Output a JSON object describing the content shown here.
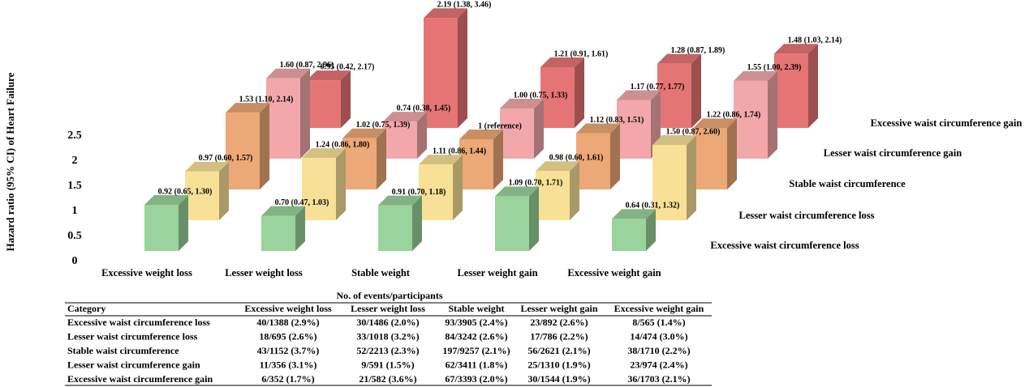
{
  "chart_data": {
    "type": "bar",
    "ylabel": "Hazard ratio (95% CI) of Heart Failure",
    "categories": [
      "Excessive weight loss",
      "Lesser weight loss",
      "Stable weight",
      "Lesser weight gain",
      "Excessive weight gain"
    ],
    "series": [
      {
        "name": "Excessive waist circumference loss",
        "color": "#9ad39b",
        "values": [
          0.92,
          0.7,
          0.91,
          1.09,
          0.64
        ],
        "value_labels": [
          "0.92 (0.65, 1.30)",
          "0.70 (0.47, 1.03)",
          "0.91 (0.70, 1.18)",
          "1.09 (0.70, 1.71)",
          "0.64 (0.31, 1.32)"
        ]
      },
      {
        "name": "Lesser waist circumference loss",
        "color": "#f8e196",
        "values": [
          0.97,
          1.24,
          1.11,
          0.98,
          1.5
        ],
        "value_labels": [
          "0.97 (0.60, 1.57)",
          "1.24 (0.86, 1.80)",
          "1.11 (0.86, 1.44)",
          "0.98 (0.60, 1.61)",
          "1.50 (0.87, 2.60)"
        ]
      },
      {
        "name": "Stable waist circumference",
        "color": "#eca876",
        "values": [
          1.53,
          1.02,
          1,
          1.12,
          1.22
        ],
        "value_labels": [
          "1.53 (1.10, 2.14)",
          "1.02 (0.75, 1.39)",
          "1 (reference)",
          "1.12 (0.83, 1.51)",
          "1.22 (0.86, 1.74)"
        ]
      },
      {
        "name": "Lesser waist circumference gain",
        "color": "#f2a8ab",
        "values": [
          1.6,
          0.74,
          1.0,
          1.17,
          1.55
        ],
        "value_labels": [
          "1.60 (0.87, 2.96)",
          "0.74 (0.38, 1.45)",
          "1.00 (0.75, 1.33)",
          "1.17 (0.77, 1.77)",
          "1.55 (1.00, 2.39)"
        ]
      },
      {
        "name": "Excessive waist circumference gain",
        "color": "#e57474",
        "values": [
          0.95,
          2.19,
          1.21,
          1.28,
          1.48
        ],
        "value_labels": [
          "0.95 (0.42, 2.17)",
          "2.19 (1.38, 3.46)",
          "1.21 (0.91, 1.61)",
          "1.28 (0.87, 1.89)",
          "1.48 (1.03, 2.14)"
        ]
      }
    ],
    "ylim": [
      0,
      2.5
    ],
    "yticks": [
      0,
      0.5,
      1,
      1.5,
      2,
      2.5
    ]
  },
  "table": {
    "title": "No. of events/participants",
    "header": [
      "Category",
      "Excessive weight loss",
      "Lesser weight loss",
      "Stable weight",
      "Lesser weight gain",
      "Excessive weight gain"
    ],
    "rows": [
      [
        "Excessive waist circumference loss",
        "40/1388 (2.9%)",
        "30/1486 (2.0%)",
        "93/3905 (2.4%)",
        "23/892 (2.6%)",
        "8/565 (1.4%)"
      ],
      [
        "Lesser waist circumference loss",
        "18/695 (2.6%)",
        "33/1018 (3.2%)",
        "84/3242 (2.6%)",
        "17/786 (2.2%)",
        "14/474 (3.0%)"
      ],
      [
        "Stable waist circumference",
        "43/1152 (3.7%)",
        "52/2213 (2.3%)",
        "197/9257 (2.1%)",
        "56/2621 (2.1%)",
        "38/1710 (2.2%)"
      ],
      [
        "Lesser waist circumference gain",
        "11/356 (3.1%)",
        "9/591 (1.5%)",
        "62/3411 (1.8%)",
        "25/1310 (1.9%)",
        "23/974 (2.4%)"
      ],
      [
        "Excessive waist circumference gain",
        "6/352 (1.7%)",
        "21/582 (3.6%)",
        "67/3393 (2.0%)",
        "30/1544 (1.9%)",
        "36/1703 (2.1%)"
      ]
    ]
  }
}
